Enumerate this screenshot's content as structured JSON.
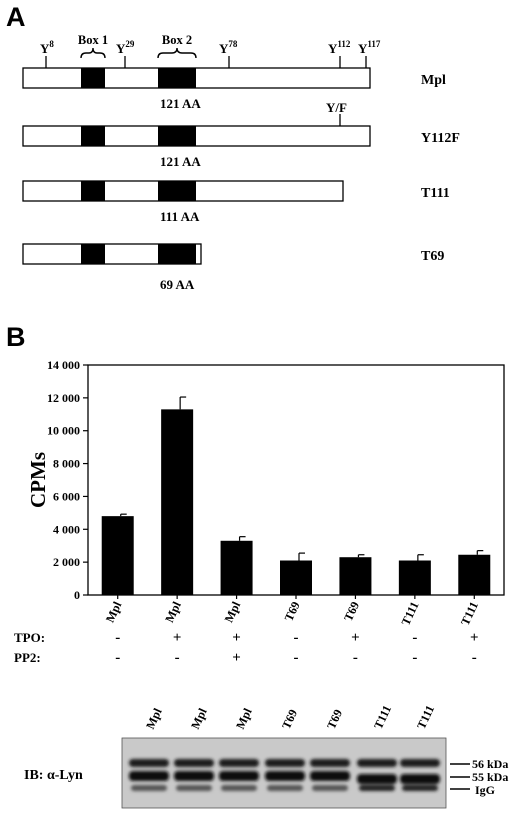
{
  "panel_a": {
    "letter": "A",
    "markers": [
      {
        "label": "Y",
        "sup": "8"
      },
      {
        "label": "Box 1",
        "sup": ""
      },
      {
        "label": "Y",
        "sup": "29"
      },
      {
        "label": "Box 2",
        "sup": ""
      },
      {
        "label": "Y",
        "sup": "78"
      },
      {
        "label": "Y",
        "sup": "112"
      },
      {
        "label": "Y",
        "sup": "117"
      }
    ],
    "constructs": [
      {
        "name": "Mpl",
        "length_label": "121 AA",
        "mutation_label": ""
      },
      {
        "name": "Y112F",
        "length_label": "121 AA",
        "mutation_label": "Y/F"
      },
      {
        "name": "T111",
        "length_label": "111 AA",
        "mutation_label": ""
      },
      {
        "name": "T69",
        "length_label": "69 AA",
        "mutation_label": ""
      }
    ]
  },
  "panel_b": {
    "letter": "B",
    "treatment_labels": [
      "TPO:",
      "PP2:"
    ],
    "tpo": [
      "-",
      "+",
      "+",
      "-",
      "+",
      "-",
      "+"
    ],
    "pp2": [
      "-",
      "-",
      "+",
      "-",
      "-",
      "-",
      "-"
    ]
  },
  "chart_data": {
    "type": "bar",
    "ylabel": "CPMs",
    "xlabel": "",
    "ylim": [
      0,
      14000
    ],
    "yticks": [
      "0",
      "2 000",
      "4 000",
      "6 000",
      "8 000",
      "10 000",
      "12 000",
      "14 000"
    ],
    "categories": [
      "Mpl",
      "Mpl",
      "Mpl",
      "T69",
      "T69",
      "T111",
      "T111"
    ],
    "values": [
      4800,
      11300,
      3300,
      2100,
      2300,
      2100,
      2450
    ],
    "errors": [
      120,
      750,
      250,
      450,
      150,
      350,
      250
    ],
    "bar_color": "#000000"
  },
  "blot": {
    "lanes": [
      "Mpl",
      "Mpl",
      "Mpl",
      "T69",
      "T69",
      "T111",
      "T111"
    ],
    "antibody_label": "IB: α-Lyn",
    "size_markers": [
      "56 kDa",
      "55 kDa",
      "IgG"
    ]
  }
}
